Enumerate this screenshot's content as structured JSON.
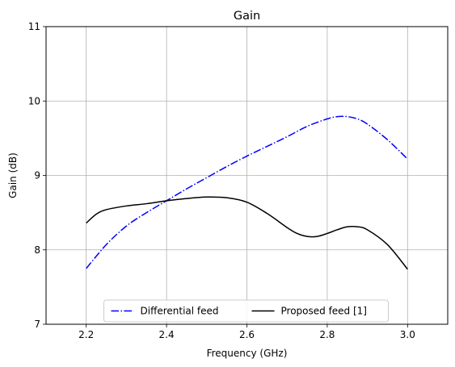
{
  "chart_data": {
    "type": "line",
    "title": "Gain",
    "xlabel": "Frequency (GHz)",
    "ylabel": "Gain (dB)",
    "xlim": [
      2.1,
      3.1
    ],
    "ylim": [
      7,
      11
    ],
    "xticks": [
      2.2,
      2.4,
      2.6,
      2.8,
      3.0
    ],
    "xtick_labels": [
      "2.2",
      "2.4",
      "2.6",
      "2.8",
      "3.0"
    ],
    "yticks": [
      7,
      8,
      9,
      10,
      11
    ],
    "ytick_labels": [
      "7",
      "8",
      "9",
      "10",
      "11"
    ],
    "grid": true,
    "legend_position": "lower-center",
    "legend_columns": 2,
    "series": [
      {
        "name": "Differential feed",
        "color": "#0000ff",
        "line_style": "dash-dot",
        "x": [
          2.2,
          2.25,
          2.3,
          2.35,
          2.4,
          2.45,
          2.5,
          2.55,
          2.6,
          2.65,
          2.7,
          2.75,
          2.8,
          2.825,
          2.85,
          2.875,
          2.9,
          2.95,
          3.0
        ],
        "y": [
          7.75,
          8.07,
          8.32,
          8.5,
          8.66,
          8.82,
          8.97,
          9.12,
          9.26,
          9.39,
          9.52,
          9.66,
          9.76,
          9.79,
          9.79,
          9.76,
          9.69,
          9.48,
          9.22
        ]
      },
      {
        "name": "Proposed feed [1]",
        "color": "#000000",
        "line_style": "solid",
        "x": [
          2.2,
          2.225,
          2.25,
          2.3,
          2.35,
          2.4,
          2.45,
          2.5,
          2.55,
          2.6,
          2.65,
          2.7,
          2.725,
          2.75,
          2.775,
          2.8,
          2.825,
          2.85,
          2.875,
          2.9,
          2.95,
          3.0
        ],
        "y": [
          8.36,
          8.48,
          8.54,
          8.59,
          8.62,
          8.66,
          8.69,
          8.71,
          8.7,
          8.64,
          8.49,
          8.3,
          8.22,
          8.18,
          8.18,
          8.22,
          8.27,
          8.31,
          8.31,
          8.27,
          8.07,
          7.74
        ]
      }
    ]
  }
}
